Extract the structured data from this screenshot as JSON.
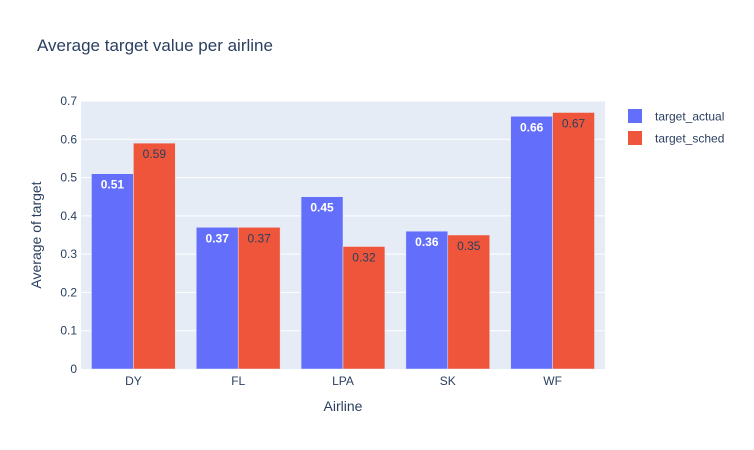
{
  "chart_data": {
    "type": "bar",
    "title": "Average target value per airline",
    "xlabel": "Airline",
    "ylabel": "Average of target",
    "categories": [
      "DY",
      "FL",
      "LPA",
      "SK",
      "WF"
    ],
    "series": [
      {
        "name": "target_actual",
        "values": [
          0.51,
          0.37,
          0.45,
          0.36,
          0.66
        ],
        "labels": [
          "0.51",
          "0.37",
          "0.45",
          "0.36",
          "0.66"
        ],
        "color": "#636efa",
        "label_color": "#ffffff"
      },
      {
        "name": "target_sched",
        "values": [
          0.59,
          0.37,
          0.32,
          0.35,
          0.67
        ],
        "labels": [
          "0.59",
          "0.37",
          "0.32",
          "0.35",
          "0.67"
        ],
        "color": "#ef553b",
        "label_color": "#2a3f5f"
      }
    ],
    "ylim": [
      0,
      0.7
    ],
    "yticks": [
      0,
      0.1,
      0.2,
      0.3,
      0.4,
      0.5,
      0.6,
      0.7
    ],
    "ytick_labels": [
      "0",
      "0.1",
      "0.2",
      "0.3",
      "0.4",
      "0.5",
      "0.6",
      "0.7"
    ],
    "grid": true,
    "legend_position": "top-right",
    "colors": {
      "plot_background": "#e5ecf6",
      "gridline": "#ffffff",
      "text": "#2a3f5f"
    }
  }
}
